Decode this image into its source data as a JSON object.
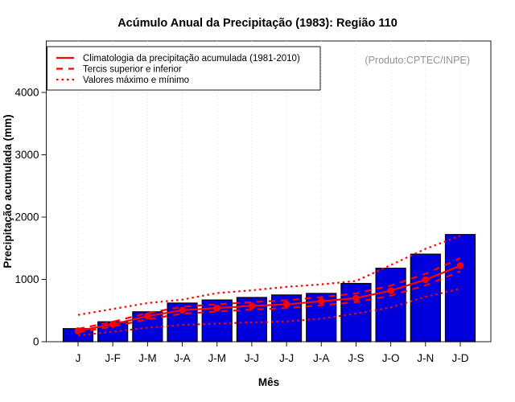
{
  "title": "Acúmulo Anual da Precipitação (1983): Região 110",
  "produto_label": "(Produto:CPTEC/INPE)",
  "legend": [
    {
      "label": "Climatologia da precipitação acumulada (1981-2010)",
      "style": "solid"
    },
    {
      "label": "Tercis superior e inferior",
      "style": "dashed"
    },
    {
      "label": "Valores máximo e mínimo",
      "style": "dotted"
    }
  ],
  "colors": {
    "bar_fill": "#0000dc",
    "bar_border": "#000000",
    "line_red": "#ff0000",
    "grid": "#dcdcdc",
    "produto_text": "#939393"
  },
  "chart_data": {
    "type": "bar",
    "title": "Acúmulo Anual da Precipitação (1983): Região 110",
    "xlabel": "Mês",
    "ylabel": "Precipitação acumulada (mm)",
    "categories": [
      "J",
      "J-F",
      "J-M",
      "J-A",
      "J-M",
      "J-J",
      "J-J",
      "J-A",
      "J-S",
      "J-O",
      "J-N",
      "J-D"
    ],
    "yticks": [
      0,
      1000,
      2000,
      3000,
      4000
    ],
    "ylim": [
      0,
      4830
    ],
    "grid": "vertical-dotted",
    "legend_position": "top-left",
    "bar_series_name": "Precipitação acumulada 1983",
    "bar_values": [
      210,
      320,
      480,
      620,
      670,
      710,
      750,
      775,
      935,
      1180,
      1405,
      1720
    ],
    "series": [
      {
        "name": "Valor máximo",
        "style": "dotted",
        "marker": false,
        "values": [
          430,
          525,
          620,
          675,
          780,
          825,
          880,
          920,
          975,
          1230,
          1490,
          1700
        ]
      },
      {
        "name": "Valor mínimo",
        "style": "dotted",
        "marker": false,
        "values": [
          100,
          160,
          225,
          270,
          290,
          310,
          325,
          370,
          450,
          550,
          720,
          850
        ]
      },
      {
        "name": "Tercil superior",
        "style": "dashed",
        "marker": false,
        "values": [
          205,
          320,
          460,
          560,
          600,
          635,
          665,
          715,
          775,
          900,
          1090,
          1340
        ]
      },
      {
        "name": "Tercil inferior",
        "style": "dashed",
        "marker": false,
        "values": [
          150,
          245,
          360,
          450,
          485,
          515,
          540,
          585,
          635,
          740,
          905,
          1130
        ]
      },
      {
        "name": "Climatologia da precipitação acumulada (1981-2010)",
        "style": "solid",
        "marker": true,
        "values": [
          175,
          280,
          410,
          505,
          540,
          575,
          600,
          650,
          700,
          820,
          995,
          1220
        ]
      }
    ]
  }
}
